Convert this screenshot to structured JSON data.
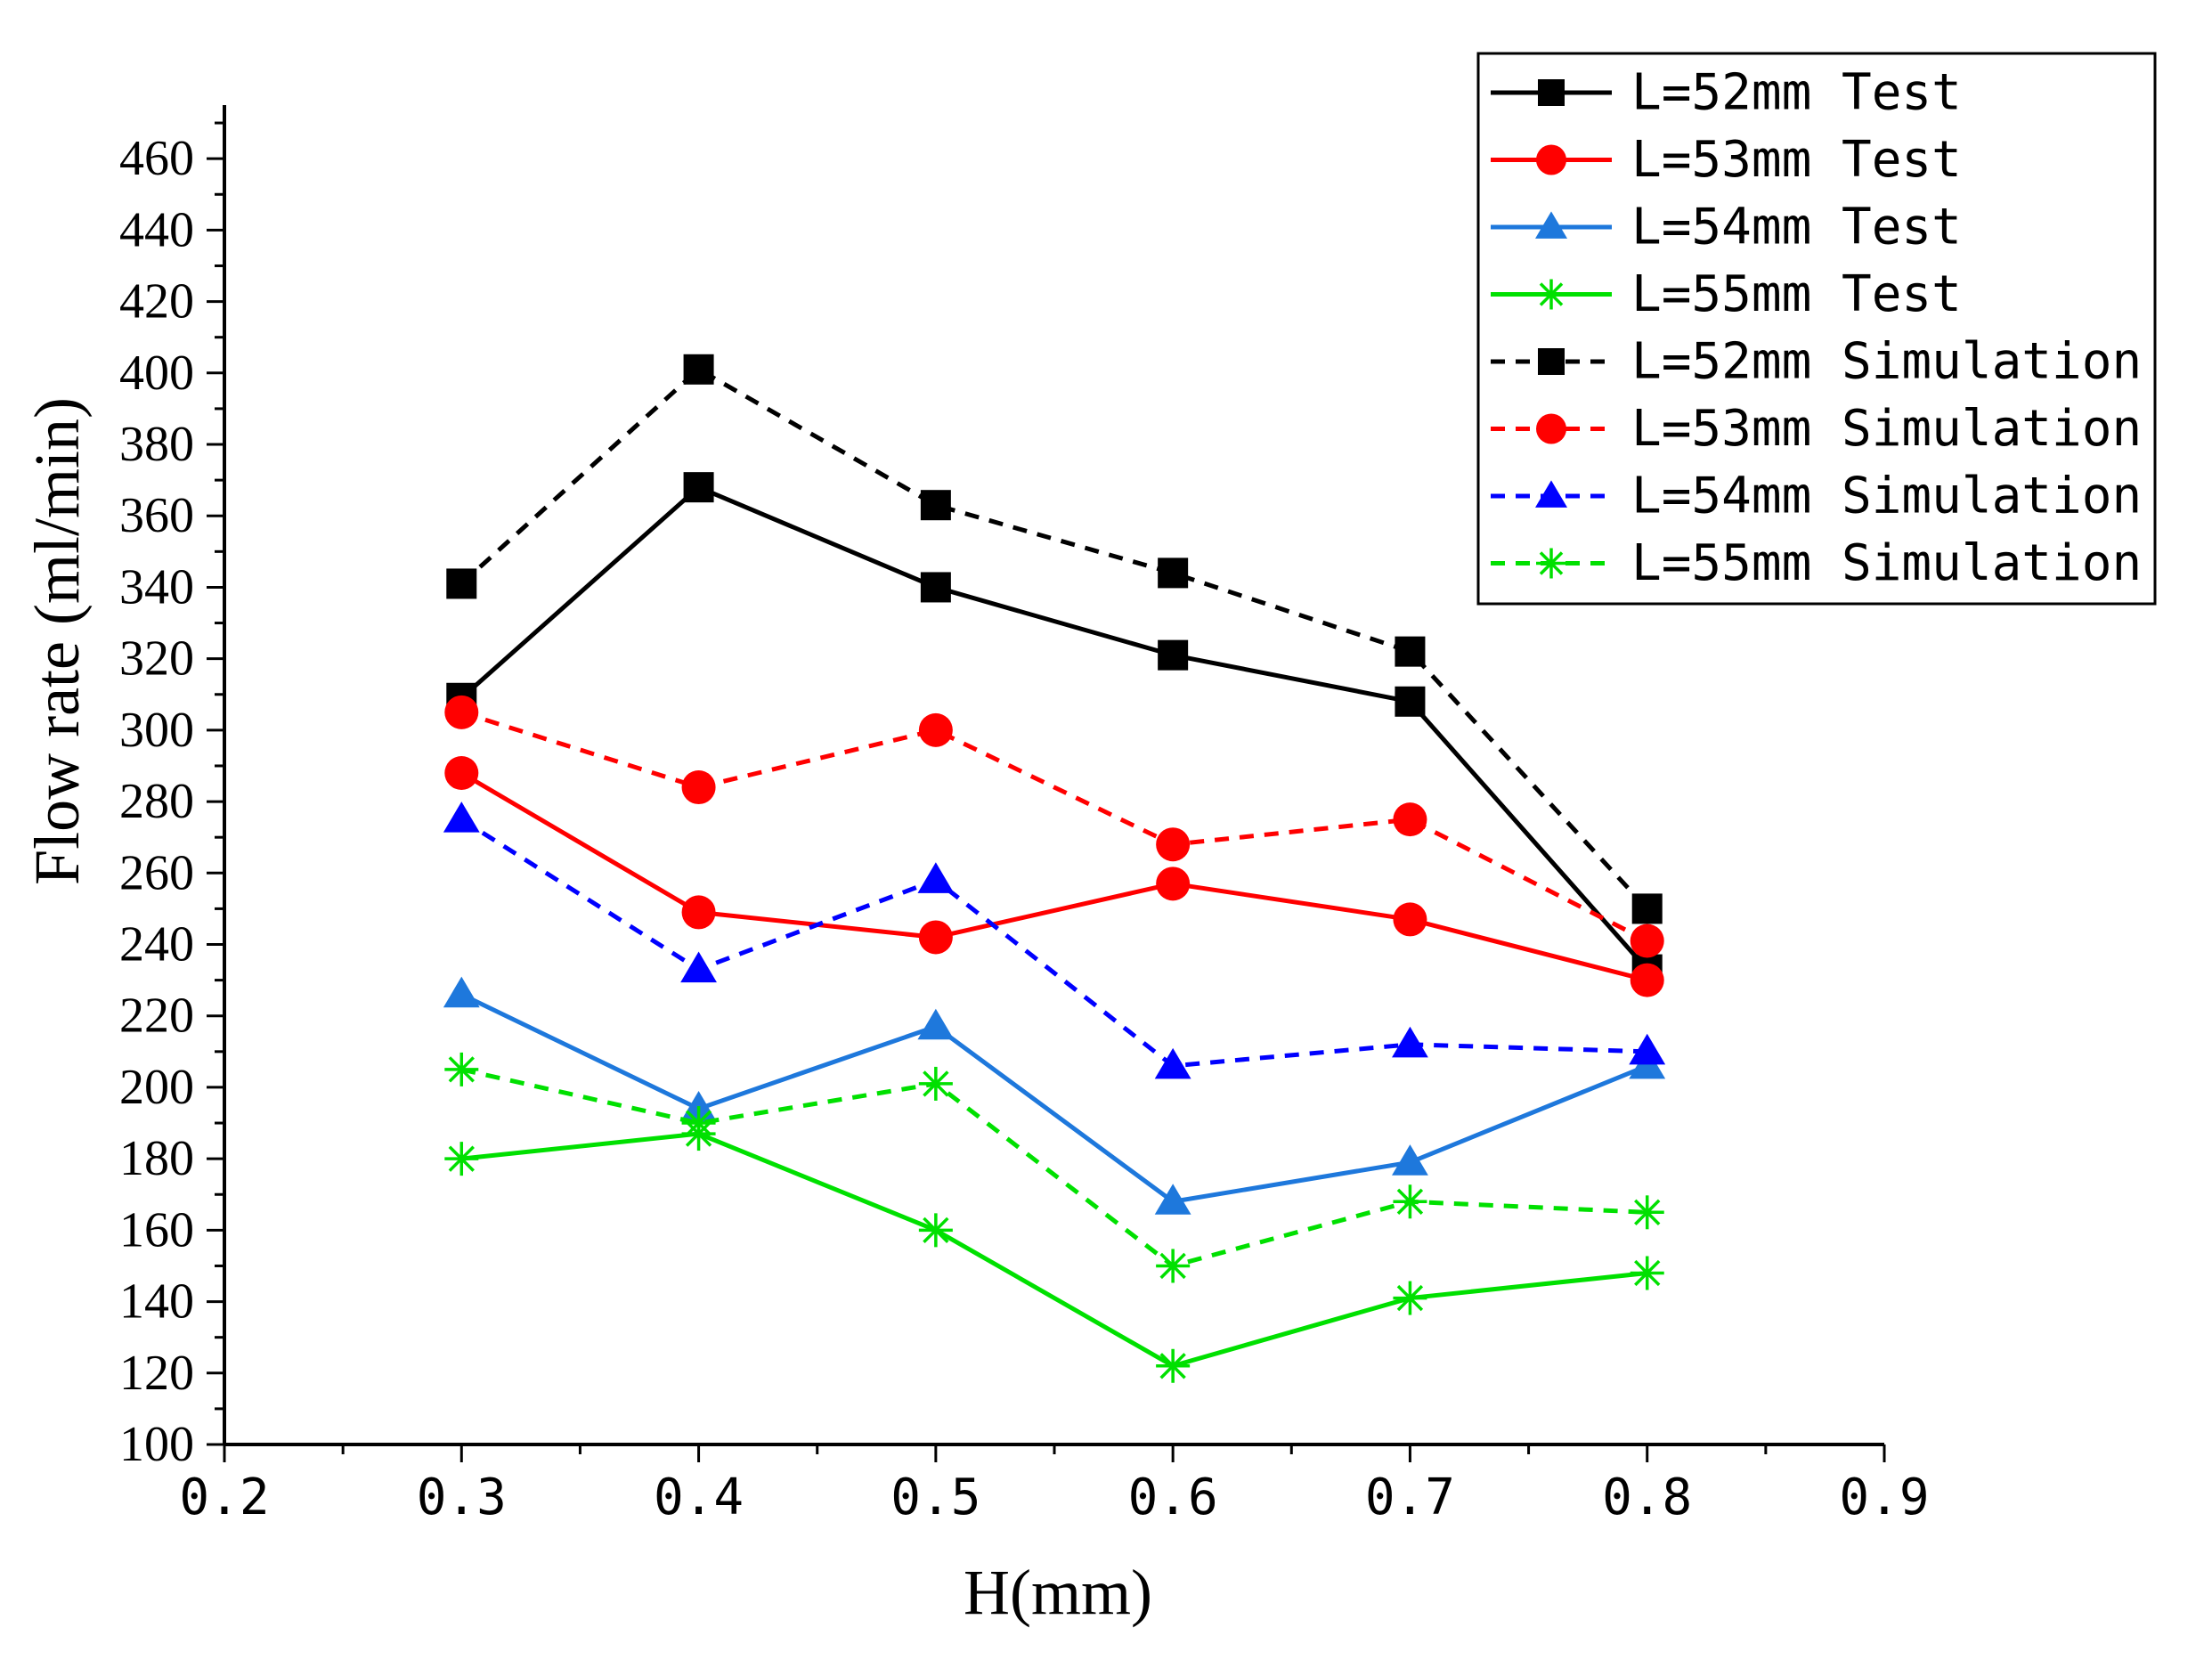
{
  "chart_data": {
    "type": "line",
    "xlabel": "H(mm)",
    "ylabel": "Flow rate (ml/min)",
    "xlim": [
      0.2,
      0.9
    ],
    "ylim": [
      100,
      475
    ],
    "xticks": [
      0.2,
      0.3,
      0.4,
      0.5,
      0.6,
      0.7,
      0.8,
      0.9
    ],
    "xtick_labels": [
      "0.2",
      "0.3",
      "0.4",
      "0.5",
      "0.6",
      "0.7",
      "0.8",
      "0.9"
    ],
    "yticks": [
      100,
      120,
      140,
      160,
      180,
      200,
      220,
      240,
      260,
      280,
      300,
      320,
      340,
      360,
      380,
      400,
      420,
      440,
      460
    ],
    "ytick_labels": [
      "100",
      "120",
      "140",
      "160",
      "180",
      "200",
      "220",
      "240",
      "260",
      "280",
      "300",
      "320",
      "340",
      "360",
      "380",
      "400",
      "420",
      "440",
      "460"
    ],
    "grid": false,
    "legend_position": "top-right",
    "x": [
      0.3,
      0.4,
      0.5,
      0.6,
      0.7,
      0.8
    ],
    "series": [
      {
        "name": "L=52mm Test",
        "values": [
          309,
          368,
          340,
          321,
          308,
          233
        ],
        "color": "#000000",
        "dash": "solid",
        "marker": "square"
      },
      {
        "name": "L=53mm Test",
        "values": [
          288,
          249,
          242,
          257,
          247,
          230
        ],
        "color": "#ff0000",
        "dash": "solid",
        "marker": "circle"
      },
      {
        "name": "L=54mm Test",
        "values": [
          226,
          194,
          217,
          168,
          179,
          206
        ],
        "color": "#1e78dc",
        "dash": "solid",
        "marker": "triangle"
      },
      {
        "name": "L=55mm Test",
        "values": [
          180,
          187,
          160,
          122,
          141,
          148
        ],
        "color": "#00e000",
        "dash": "solid",
        "marker": "asterisk"
      },
      {
        "name": "L=52mm Simulation",
        "values": [
          341,
          401,
          363,
          344,
          322,
          250
        ],
        "color": "#000000",
        "dash": "dashed",
        "marker": "square"
      },
      {
        "name": "L=53mm Simulation",
        "values": [
          305,
          284,
          300,
          268,
          275,
          241
        ],
        "color": "#ff0000",
        "dash": "dashed",
        "marker": "circle"
      },
      {
        "name": "L=54mm Simulation",
        "values": [
          275,
          233,
          258,
          206,
          212,
          210
        ],
        "color": "#0000ff",
        "dash": "dashed",
        "marker": "triangle"
      },
      {
        "name": "L=55mm Simulation",
        "values": [
          205,
          190,
          201,
          150,
          168,
          165
        ],
        "color": "#00e000",
        "dash": "dashed",
        "marker": "asterisk"
      }
    ]
  }
}
